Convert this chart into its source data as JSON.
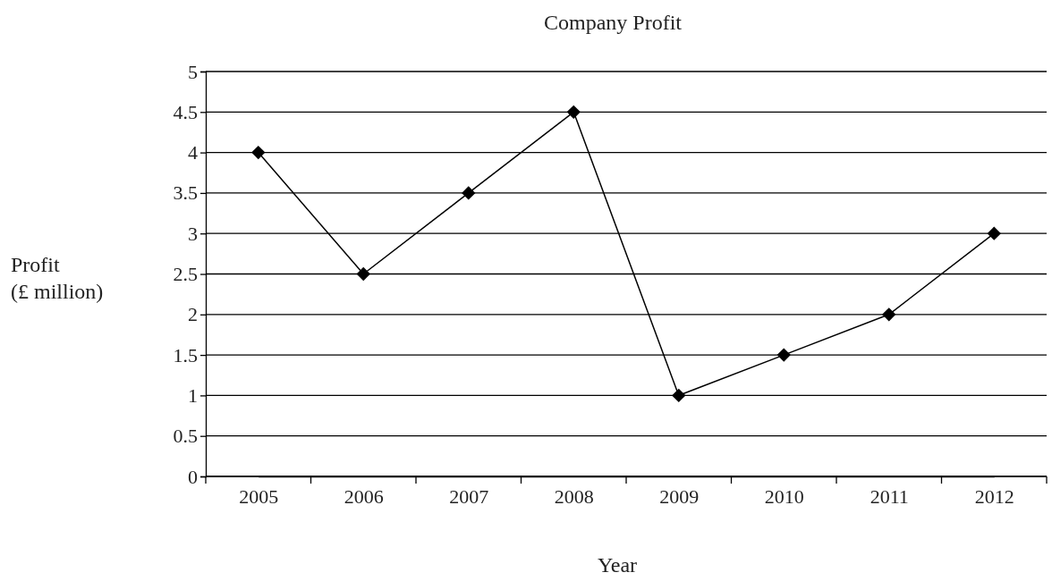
{
  "chart_data": {
    "type": "line",
    "title": "Company Profit",
    "xlabel": "Year",
    "ylabel": "Profit\n(£ million)",
    "categories": [
      "2005",
      "2006",
      "2007",
      "2008",
      "2009",
      "2010",
      "2011",
      "2012"
    ],
    "series": [
      {
        "color": "#000000",
        "values": [
          4,
          2.5,
          3.5,
          4.5,
          1,
          1.5,
          2,
          3
        ]
      }
    ],
    "ylim": [
      0,
      5
    ],
    "yticks": [
      0,
      0.5,
      1,
      1.5,
      2,
      2.5,
      3,
      3.5,
      4,
      4.5,
      5
    ],
    "grid": "y",
    "marker": "diamond",
    "line_style": "solid"
  }
}
